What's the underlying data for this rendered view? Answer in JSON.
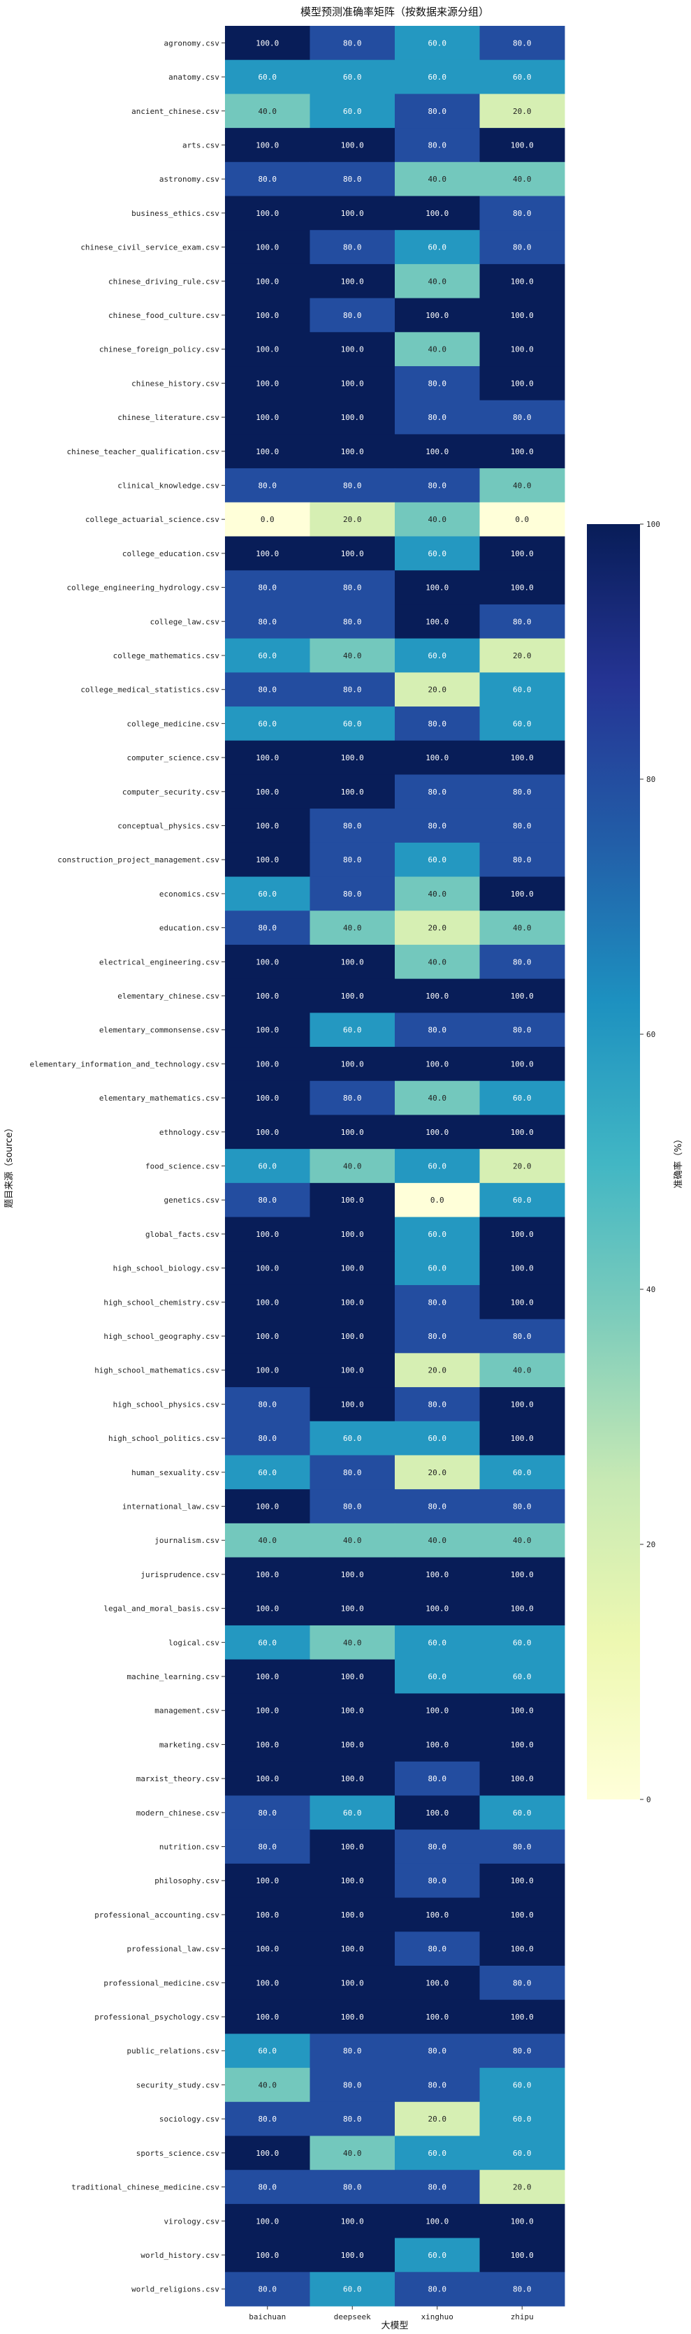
{
  "chart_data": {
    "type": "heatmap",
    "title": "模型预测准确率矩阵（按数据来源分组）",
    "xlabel": "大模型",
    "ylabel": "题目来源（source）",
    "colorbar_label": "准确率（%）",
    "colorbar_ticks": [
      "0",
      "20",
      "40",
      "60",
      "80",
      "100"
    ],
    "vrange": [
      0,
      100
    ],
    "colormap": "YlGnBu",
    "columns": [
      "baichuan",
      "deepseek",
      "xinghuo",
      "zhipu"
    ],
    "rows": [
      {
        "label": "agronomy.csv",
        "values": [
          100,
          80,
          60,
          80
        ],
        "display": [
          "100.0",
          "80.0",
          "60.0",
          "80.0"
        ]
      },
      {
        "label": "anatomy.csv",
        "values": [
          60,
          60,
          60,
          60
        ],
        "display": [
          "60.0",
          "60.0",
          "60.0",
          "60.0"
        ]
      },
      {
        "label": "ancient_chinese.csv",
        "values": [
          40,
          60,
          80,
          20
        ],
        "display": [
          "40.0",
          "60.0",
          "80.0",
          "20.0"
        ]
      },
      {
        "label": "arts.csv",
        "values": [
          100,
          100,
          80,
          100
        ],
        "display": [
          "100.0",
          "100.0",
          "80.0",
          "100.0"
        ]
      },
      {
        "label": "astronomy.csv",
        "values": [
          80,
          80,
          40,
          40
        ],
        "display": [
          "80.0",
          "80.0",
          "40.0",
          "40.0"
        ]
      },
      {
        "label": "business_ethics.csv",
        "values": [
          100,
          100,
          100,
          80
        ],
        "display": [
          "100.0",
          "100.0",
          "100.0",
          "80.0"
        ]
      },
      {
        "label": "chinese_civil_service_exam.csv",
        "values": [
          100,
          80,
          60,
          80
        ],
        "display": [
          "100.0",
          "80.0",
          "60.0",
          "80.0"
        ]
      },
      {
        "label": "chinese_driving_rule.csv",
        "values": [
          100,
          100,
          40,
          100
        ],
        "display": [
          "100.0",
          "100.0",
          "40.0",
          "100.0"
        ]
      },
      {
        "label": "chinese_food_culture.csv",
        "values": [
          100,
          80,
          100,
          100
        ],
        "display": [
          "100.0",
          "80.0",
          "100.0",
          "100.0"
        ]
      },
      {
        "label": "chinese_foreign_policy.csv",
        "values": [
          100,
          100,
          40,
          100
        ],
        "display": [
          "100.0",
          "100.0",
          "40.0",
          "100.0"
        ]
      },
      {
        "label": "chinese_history.csv",
        "values": [
          100,
          100,
          80,
          100
        ],
        "display": [
          "100.0",
          "100.0",
          "80.0",
          "100.0"
        ]
      },
      {
        "label": "chinese_literature.csv",
        "values": [
          100,
          100,
          80,
          80
        ],
        "display": [
          "100.0",
          "100.0",
          "80.0",
          "80.0"
        ]
      },
      {
        "label": "chinese_teacher_qualification.csv",
        "values": [
          100,
          100,
          100,
          100
        ],
        "display": [
          "100.0",
          "100.0",
          "100.0",
          "100.0"
        ]
      },
      {
        "label": "clinical_knowledge.csv",
        "values": [
          80,
          80,
          80,
          40
        ],
        "display": [
          "80.0",
          "80.0",
          "80.0",
          "40.0"
        ]
      },
      {
        "label": "college_actuarial_science.csv",
        "values": [
          0,
          20,
          40,
          0
        ],
        "display": [
          "0.0",
          "20.0",
          "40.0",
          "0.0"
        ]
      },
      {
        "label": "college_education.csv",
        "values": [
          100,
          100,
          60,
          100
        ],
        "display": [
          "100.0",
          "100.0",
          "60.0",
          "100.0"
        ]
      },
      {
        "label": "college_engineering_hydrology.csv",
        "values": [
          80,
          80,
          100,
          100
        ],
        "display": [
          "80.0",
          "80.0",
          "100.0",
          "100.0"
        ]
      },
      {
        "label": "college_law.csv",
        "values": [
          80,
          80,
          100,
          80
        ],
        "display": [
          "80.0",
          "80.0",
          "100.0",
          "80.0"
        ]
      },
      {
        "label": "college_mathematics.csv",
        "values": [
          60,
          40,
          60,
          20
        ],
        "display": [
          "60.0",
          "40.0",
          "60.0",
          "20.0"
        ]
      },
      {
        "label": "college_medical_statistics.csv",
        "values": [
          80,
          80,
          20,
          60
        ],
        "display": [
          "80.0",
          "80.0",
          "20.0",
          "60.0"
        ]
      },
      {
        "label": "college_medicine.csv",
        "values": [
          60,
          60,
          80,
          60
        ],
        "display": [
          "60.0",
          "60.0",
          "80.0",
          "60.0"
        ]
      },
      {
        "label": "computer_science.csv",
        "values": [
          100,
          100,
          100,
          100
        ],
        "display": [
          "100.0",
          "100.0",
          "100.0",
          "100.0"
        ]
      },
      {
        "label": "computer_security.csv",
        "values": [
          100,
          100,
          80,
          80
        ],
        "display": [
          "100.0",
          "100.0",
          "80.0",
          "80.0"
        ]
      },
      {
        "label": "conceptual_physics.csv",
        "values": [
          100,
          80,
          80,
          80
        ],
        "display": [
          "100.0",
          "80.0",
          "80.0",
          "80.0"
        ]
      },
      {
        "label": "construction_project_management.csv",
        "values": [
          100,
          80,
          60,
          80
        ],
        "display": [
          "100.0",
          "80.0",
          "60.0",
          "80.0"
        ]
      },
      {
        "label": "economics.csv",
        "values": [
          60,
          80,
          40,
          100
        ],
        "display": [
          "60.0",
          "80.0",
          "40.0",
          "100.0"
        ]
      },
      {
        "label": "education.csv",
        "values": [
          80,
          40,
          20,
          40
        ],
        "display": [
          "80.0",
          "40.0",
          "20.0",
          "40.0"
        ]
      },
      {
        "label": "electrical_engineering.csv",
        "values": [
          100,
          100,
          40,
          80
        ],
        "display": [
          "100.0",
          "100.0",
          "40.0",
          "80.0"
        ]
      },
      {
        "label": "elementary_chinese.csv",
        "values": [
          100,
          100,
          100,
          100
        ],
        "display": [
          "100.0",
          "100.0",
          "100.0",
          "100.0"
        ]
      },
      {
        "label": "elementary_commonsense.csv",
        "values": [
          100,
          60,
          80,
          80
        ],
        "display": [
          "100.0",
          "60.0",
          "80.0",
          "80.0"
        ]
      },
      {
        "label": "elementary_information_and_technology.csv",
        "values": [
          100,
          100,
          100,
          100
        ],
        "display": [
          "100.0",
          "100.0",
          "100.0",
          "100.0"
        ]
      },
      {
        "label": "elementary_mathematics.csv",
        "values": [
          100,
          80,
          40,
          60
        ],
        "display": [
          "100.0",
          "80.0",
          "40.0",
          "60.0"
        ]
      },
      {
        "label": "ethnology.csv",
        "values": [
          100,
          100,
          100,
          100
        ],
        "display": [
          "100.0",
          "100.0",
          "100.0",
          "100.0"
        ]
      },
      {
        "label": "food_science.csv",
        "values": [
          60,
          40,
          60,
          20
        ],
        "display": [
          "60.0",
          "40.0",
          "60.0",
          "20.0"
        ]
      },
      {
        "label": "genetics.csv",
        "values": [
          80,
          100,
          0,
          60
        ],
        "display": [
          "80.0",
          "100.0",
          "0.0",
          "60.0"
        ]
      },
      {
        "label": "global_facts.csv",
        "values": [
          100,
          100,
          60,
          100
        ],
        "display": [
          "100.0",
          "100.0",
          "60.0",
          "100.0"
        ]
      },
      {
        "label": "high_school_biology.csv",
        "values": [
          100,
          100,
          60,
          100
        ],
        "display": [
          "100.0",
          "100.0",
          "60.0",
          "100.0"
        ]
      },
      {
        "label": "high_school_chemistry.csv",
        "values": [
          100,
          100,
          80,
          100
        ],
        "display": [
          "100.0",
          "100.0",
          "80.0",
          "100.0"
        ]
      },
      {
        "label": "high_school_geography.csv",
        "values": [
          100,
          100,
          80,
          80
        ],
        "display": [
          "100.0",
          "100.0",
          "80.0",
          "80.0"
        ]
      },
      {
        "label": "high_school_mathematics.csv",
        "values": [
          100,
          100,
          20,
          40
        ],
        "display": [
          "100.0",
          "100.0",
          "20.0",
          "40.0"
        ]
      },
      {
        "label": "high_school_physics.csv",
        "values": [
          80,
          100,
          80,
          100
        ],
        "display": [
          "80.0",
          "100.0",
          "80.0",
          "100.0"
        ]
      },
      {
        "label": "high_school_politics.csv",
        "values": [
          80,
          60,
          60,
          100
        ],
        "display": [
          "80.0",
          "60.0",
          "60.0",
          "100.0"
        ]
      },
      {
        "label": "human_sexuality.csv",
        "values": [
          60,
          80,
          20,
          60
        ],
        "display": [
          "60.0",
          "80.0",
          "20.0",
          "60.0"
        ]
      },
      {
        "label": "international_law.csv",
        "values": [
          100,
          80,
          80,
          80
        ],
        "display": [
          "100.0",
          "80.0",
          "80.0",
          "80.0"
        ]
      },
      {
        "label": "journalism.csv",
        "values": [
          40,
          40,
          40,
          40
        ],
        "display": [
          "40.0",
          "40.0",
          "40.0",
          "40.0"
        ]
      },
      {
        "label": "jurisprudence.csv",
        "values": [
          100,
          100,
          100,
          100
        ],
        "display": [
          "100.0",
          "100.0",
          "100.0",
          "100.0"
        ]
      },
      {
        "label": "legal_and_moral_basis.csv",
        "values": [
          100,
          100,
          100,
          100
        ],
        "display": [
          "100.0",
          "100.0",
          "100.0",
          "100.0"
        ]
      },
      {
        "label": "logical.csv",
        "values": [
          60,
          40,
          60,
          60
        ],
        "display": [
          "60.0",
          "40.0",
          "60.0",
          "60.0"
        ]
      },
      {
        "label": "machine_learning.csv",
        "values": [
          100,
          100,
          60,
          60
        ],
        "display": [
          "100.0",
          "100.0",
          "60.0",
          "60.0"
        ]
      },
      {
        "label": "management.csv",
        "values": [
          100,
          100,
          100,
          100
        ],
        "display": [
          "100.0",
          "100.0",
          "100.0",
          "100.0"
        ]
      },
      {
        "label": "marketing.csv",
        "values": [
          100,
          100,
          100,
          100
        ],
        "display": [
          "100.0",
          "100.0",
          "100.0",
          "100.0"
        ]
      },
      {
        "label": "marxist_theory.csv",
        "values": [
          100,
          100,
          80,
          100
        ],
        "display": [
          "100.0",
          "100.0",
          "80.0",
          "100.0"
        ]
      },
      {
        "label": "modern_chinese.csv",
        "values": [
          80,
          60,
          100,
          60
        ],
        "display": [
          "80.0",
          "60.0",
          "100.0",
          "60.0"
        ]
      },
      {
        "label": "nutrition.csv",
        "values": [
          80,
          100,
          80,
          80
        ],
        "display": [
          "80.0",
          "100.0",
          "80.0",
          "80.0"
        ]
      },
      {
        "label": "philosophy.csv",
        "values": [
          100,
          100,
          80,
          100
        ],
        "display": [
          "100.0",
          "100.0",
          "80.0",
          "100.0"
        ]
      },
      {
        "label": "professional_accounting.csv",
        "values": [
          100,
          100,
          100,
          100
        ],
        "display": [
          "100.0",
          "100.0",
          "100.0",
          "100.0"
        ]
      },
      {
        "label": "professional_law.csv",
        "values": [
          100,
          100,
          80,
          100
        ],
        "display": [
          "100.0",
          "100.0",
          "80.0",
          "100.0"
        ]
      },
      {
        "label": "professional_medicine.csv",
        "values": [
          100,
          100,
          100,
          80
        ],
        "display": [
          "100.0",
          "100.0",
          "100.0",
          "80.0"
        ]
      },
      {
        "label": "professional_psychology.csv",
        "values": [
          100,
          100,
          100,
          100
        ],
        "display": [
          "100.0",
          "100.0",
          "100.0",
          "100.0"
        ]
      },
      {
        "label": "public_relations.csv",
        "values": [
          60,
          80,
          80,
          80
        ],
        "display": [
          "60.0",
          "80.0",
          "80.0",
          "80.0"
        ]
      },
      {
        "label": "security_study.csv",
        "values": [
          40,
          80,
          80,
          60
        ],
        "display": [
          "40.0",
          "80.0",
          "80.0",
          "60.0"
        ]
      },
      {
        "label": "sociology.csv",
        "values": [
          80,
          80,
          20,
          60
        ],
        "display": [
          "80.0",
          "80.0",
          "20.0",
          "60.0"
        ]
      },
      {
        "label": "sports_science.csv",
        "values": [
          100,
          40,
          60,
          60
        ],
        "display": [
          "100.0",
          "40.0",
          "60.0",
          "60.0"
        ]
      },
      {
        "label": "traditional_chinese_medicine.csv",
        "values": [
          80,
          80,
          80,
          20
        ],
        "display": [
          "80.0",
          "80.0",
          "80.0",
          "20.0"
        ]
      },
      {
        "label": "virology.csv",
        "values": [
          100,
          100,
          100,
          100
        ],
        "display": [
          "100.0",
          "100.0",
          "100.0",
          "100.0"
        ]
      },
      {
        "label": "world_history.csv",
        "values": [
          100,
          100,
          60,
          100
        ],
        "display": [
          "100.0",
          "100.0",
          "60.0",
          "100.0"
        ]
      },
      {
        "label": "world_religions.csv",
        "values": [
          80,
          60,
          80,
          80
        ],
        "display": [
          "80.0",
          "60.0",
          "80.0",
          "80.0"
        ]
      }
    ]
  }
}
